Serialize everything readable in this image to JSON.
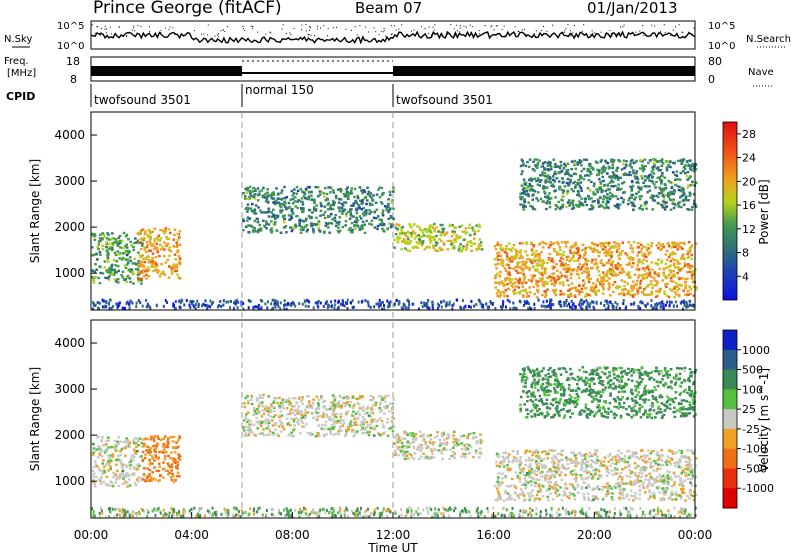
{
  "header": {
    "station": "Prince George (fitACF)",
    "beam": "Beam 07",
    "date": "01/Jan/2013"
  },
  "noise_panel": {
    "left_label": "N.Sky",
    "right_label": "N.Search",
    "left_ticks": [
      "10^5",
      "10^0"
    ],
    "right_ticks": [
      "10^5",
      "10^0"
    ]
  },
  "freq_panel": {
    "left_label": "Freq.",
    "left_unit": "[MHz]",
    "right_label": "Nave",
    "left_ticks": [
      "18",
      "8"
    ],
    "right_ticks": [
      "80",
      "0"
    ]
  },
  "cpid": {
    "label": "CPID",
    "segments": [
      {
        "name": "twofsound 3501",
        "start_hr": 0,
        "end_hr": 6
      },
      {
        "name": "normal 150",
        "start_hr": 6,
        "end_hr": 12
      },
      {
        "name": "twofsound 3501",
        "start_hr": 12,
        "end_hr": 24
      }
    ]
  },
  "power_colorbar": {
    "label": "Power [dB]",
    "ticks": [
      "28",
      "24",
      "20",
      "16",
      "12",
      "8",
      "4"
    ]
  },
  "velocity_colorbar": {
    "label": "Velocity [m s^-1]",
    "ticks": [
      "1000",
      "500",
      "100",
      "25",
      "-25",
      "-100",
      "-500",
      "-1000"
    ]
  },
  "x_axis": {
    "label": "Time UT",
    "ticks": [
      "00:00",
      "04:00",
      "08:00",
      "12:00",
      "16:00",
      "20:00",
      "00:00"
    ]
  },
  "chart_data": [
    {
      "type": "heatmap",
      "title": "Power",
      "xlabel": "Time UT",
      "ylabel": "Slant Range [km]",
      "xlim": [
        0,
        24
      ],
      "ylim": [
        200,
        4500
      ],
      "yticks": [
        1000,
        2000,
        3000,
        4000
      ],
      "colorbar": {
        "label": "Power [dB]",
        "range": [
          0,
          30
        ]
      },
      "regions": [
        {
          "t0": 0.0,
          "t1": 2.0,
          "r0": 800,
          "r1": 1900,
          "mean_db": 14
        },
        {
          "t0": 1.8,
          "t1": 3.5,
          "r0": 900,
          "r1": 2000,
          "mean_db": 22
        },
        {
          "t0": 6.0,
          "t1": 12.0,
          "r0": 1900,
          "r1": 2900,
          "mean_db": 12
        },
        {
          "t0": 12.0,
          "t1": 15.5,
          "r0": 1500,
          "r1": 2100,
          "mean_db": 18
        },
        {
          "t0": 16.0,
          "t1": 24.0,
          "r0": 500,
          "r1": 1700,
          "mean_db": 22
        },
        {
          "t0": 17.0,
          "t1": 24.0,
          "r0": 2400,
          "r1": 3500,
          "mean_db": 12
        }
      ]
    },
    {
      "type": "heatmap",
      "title": "Velocity",
      "xlabel": "Time UT",
      "ylabel": "Slant Range [km]",
      "xlim": [
        0,
        24
      ],
      "ylim": [
        200,
        4500
      ],
      "yticks": [
        1000,
        2000,
        3000,
        4000
      ],
      "colorbar": {
        "label": "Velocity [m s^-1]",
        "range": [
          -1000,
          1000
        ]
      },
      "regions": [
        {
          "t0": 0.0,
          "t1": 2.0,
          "r0": 900,
          "r1": 2000,
          "mean_v": 0
        },
        {
          "t0": 2.0,
          "t1": 3.5,
          "r0": 1000,
          "r1": 2000,
          "mean_v": -110
        },
        {
          "t0": 6.0,
          "t1": 12.0,
          "r0": 2000,
          "r1": 2900,
          "mean_v": 0
        },
        {
          "t0": 12.0,
          "t1": 15.5,
          "r0": 1500,
          "r1": 2100,
          "mean_v": 0
        },
        {
          "t0": 16.0,
          "t1": 24.0,
          "r0": 600,
          "r1": 1700,
          "mean_v": 0
        },
        {
          "t0": 17.0,
          "t1": 24.0,
          "r0": 2400,
          "r1": 3500,
          "mean_v": 80
        }
      ]
    }
  ]
}
